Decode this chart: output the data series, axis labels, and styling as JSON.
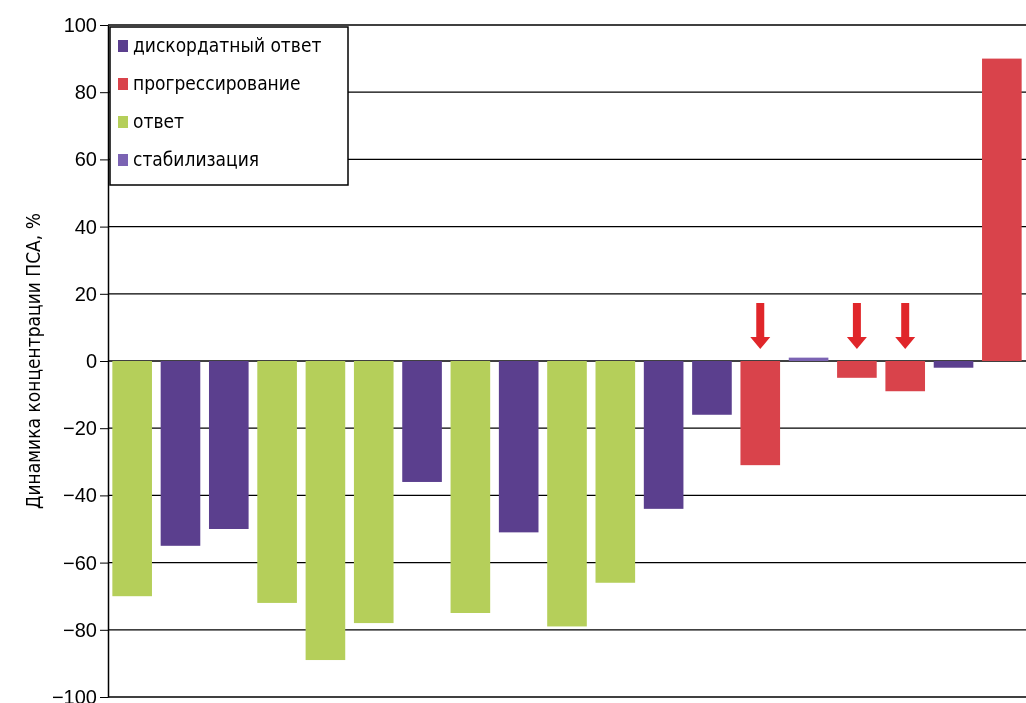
{
  "chart_data": {
    "type": "bar",
    "ylabel": "Динамика концентрации ПСА, %",
    "categories": [
      null,
      null,
      null,
      null,
      null,
      null,
      null,
      null,
      null,
      null,
      null,
      null,
      null,
      null,
      null,
      null,
      null,
      null,
      null
    ],
    "series": [
      {
        "name": "дискордатный ответ",
        "color": "#5b3f8e",
        "values": [
          null,
          -55,
          -50,
          null,
          null,
          null,
          -36,
          null,
          -51,
          null,
          null,
          -44,
          -16,
          null,
          null,
          null,
          null,
          -2,
          null
        ]
      },
      {
        "name": "прогрессирование",
        "color": "#d9434b",
        "values": [
          null,
          null,
          null,
          null,
          null,
          null,
          null,
          null,
          null,
          null,
          null,
          null,
          null,
          -31,
          null,
          -5,
          -9,
          null,
          90
        ]
      },
      {
        "name": "ответ",
        "color": "#b5cf5a",
        "values": [
          -70,
          null,
          null,
          -72,
          -89,
          -78,
          null,
          -75,
          null,
          -79,
          -66,
          null,
          null,
          null,
          null,
          null,
          null,
          null,
          null
        ]
      },
      {
        "name": "стабилизация",
        "color": "#7b63b3",
        "values": [
          null,
          null,
          null,
          null,
          null,
          null,
          null,
          null,
          null,
          null,
          null,
          null,
          null,
          null,
          1,
          null,
          null,
          null,
          null
        ]
      }
    ],
    "ylim": [
      -100,
      100
    ],
    "yticks": [
      -100,
      -80,
      -60,
      -40,
      -20,
      0,
      20,
      40,
      60,
      80,
      100
    ],
    "grid": "y",
    "legend": "top left"
  }
}
